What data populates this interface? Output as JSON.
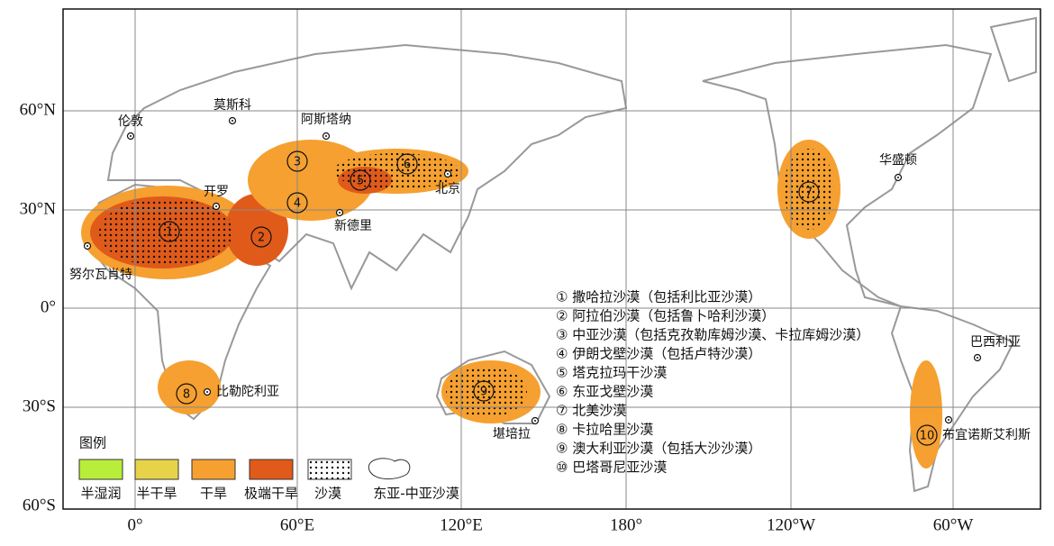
{
  "axes": {
    "y_labels": [
      "60°N",
      "30°N",
      "0°",
      "30°S",
      "60°S"
    ],
    "x_labels": [
      "0°",
      "60°E",
      "120°E",
      "180°",
      "120°W",
      "60°W"
    ]
  },
  "cities": [
    "伦敦",
    "莫斯科",
    "阿斯塔纳",
    "开罗",
    "北京",
    "新德里",
    "努尔瓦肖特",
    "比勒陀利亚",
    "堪培拉",
    "华盛顿",
    "巴西利亚",
    "布宜诺斯艾利斯"
  ],
  "markers": [
    "1",
    "2",
    "3",
    "4",
    "5",
    "6",
    "7",
    "8",
    "9",
    "10"
  ],
  "desert_list": [
    "① 撒哈拉沙漠（包括利比亚沙漠）",
    "② 阿拉伯沙漠（包括鲁卜哈利沙漠）",
    "③ 中亚沙漠（包括克孜勒库姆沙漠、卡拉库姆沙漠）",
    "④ 伊朗戈壁沙漠（包括卢特沙漠）",
    "⑤ 塔克拉玛干沙漠",
    "⑥ 东亚戈壁沙漠",
    "⑦ 北美沙漠",
    "⑧ 卡拉哈里沙漠",
    "⑨ 澳大利亚沙漠（包括大沙沙漠）",
    "⑩ 巴塔哥尼亚沙漠"
  ],
  "legend": {
    "title": "图例",
    "items": [
      "半湿润",
      "半干旱",
      "干旱",
      "极端干旱",
      "沙漠",
      "东亚-中亚沙漠"
    ]
  }
}
